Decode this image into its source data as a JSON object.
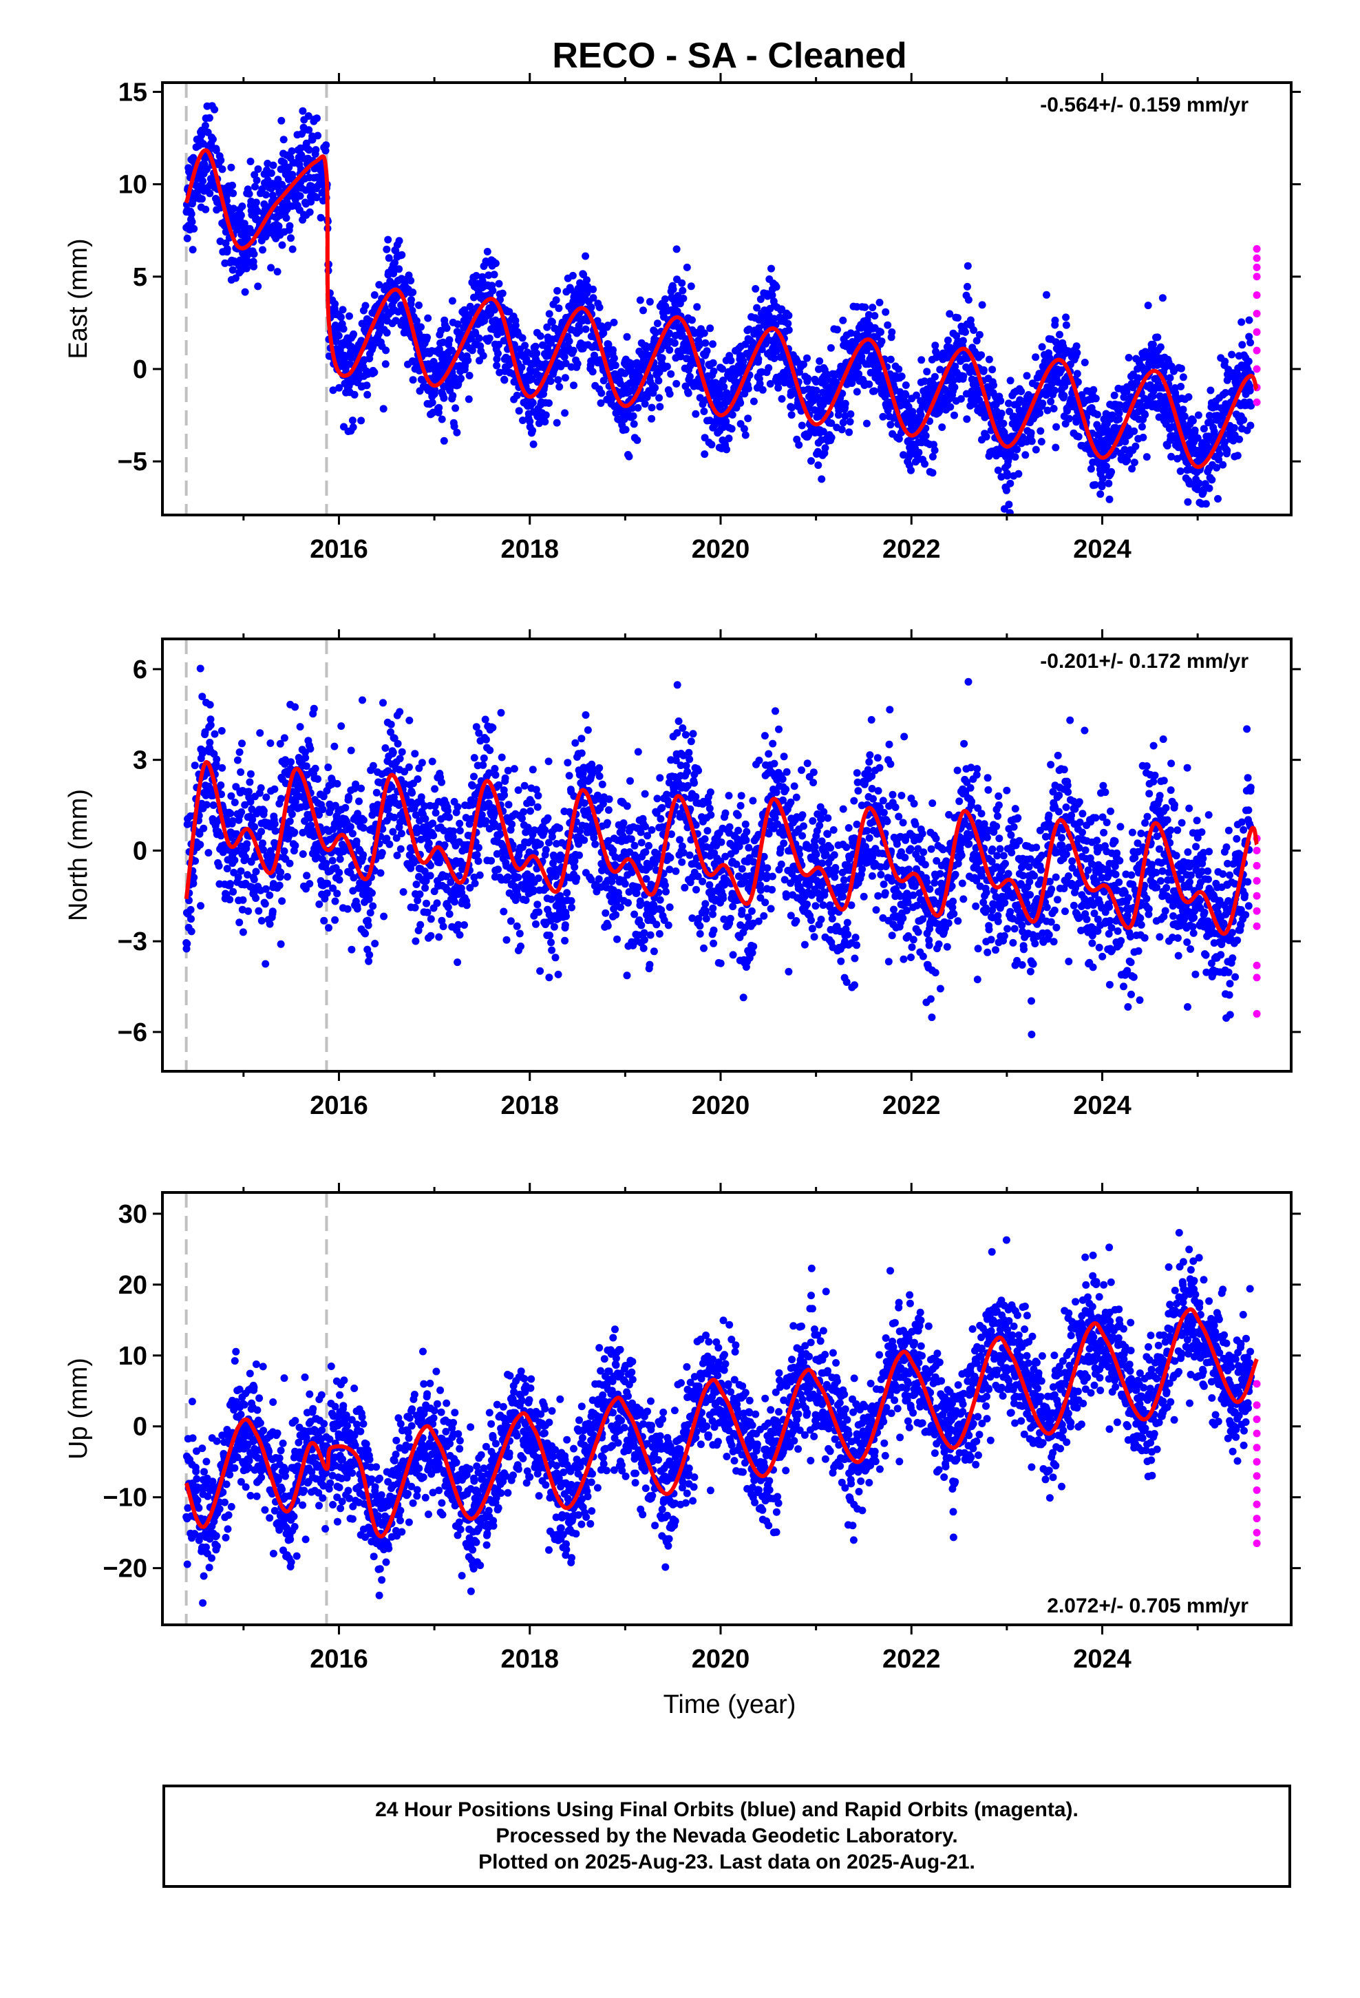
{
  "title": "RECO  - SA - Cleaned",
  "colors": {
    "final": "#0000ff",
    "rapid": "#ff00ff",
    "model": "#ff0000",
    "break": "#c0c0c0"
  },
  "x_axis": {
    "label": "Time (year)",
    "ticks": [
      "2016",
      "2018",
      "2020",
      "2022",
      "2024"
    ]
  },
  "caption": {
    "line1": "24 Hour Positions Using Final Orbits (blue) and Rapid Orbits (magenta).",
    "line2": "Processed by the Nevada Geodetic Laboratory.",
    "line3": "Plotted on 2025-Aug-23. Last data on 2025-Aug-21."
  },
  "chart_data": [
    {
      "type": "scatter",
      "ylabel": "East (mm)",
      "rate": "-0.564+/- 0.159 mm/yr",
      "rate_position": "top-right",
      "xlim": [
        2014.15,
        2025.98
      ],
      "ylim": [
        -7.9,
        15.5
      ],
      "yticks": [
        -5,
        0,
        5,
        10,
        15
      ],
      "xticks": [
        2016,
        2018,
        2020,
        2022,
        2024
      ],
      "breaks": [
        2014.4,
        2015.87
      ],
      "series": [
        {
          "kind": "final",
          "start": 2014.4,
          "end": 2025.56,
          "scatter": 1.3,
          "trend": [
            [
              2014.4,
              9.2
            ],
            [
              2015.87,
              9.0
            ],
            [
              2015.9,
              2.2
            ],
            [
              2025.56,
              -3.0
            ]
          ],
          "seasonal_amp": 2.6,
          "seasonal_phase": 0.55
        },
        {
          "kind": "rapid",
          "x": 2025.62,
          "y": [
            -1.8,
            -1.0,
            0.0,
            1.0,
            2.0,
            3.0,
            4.0,
            5.0,
            5.5,
            6.0,
            6.5
          ]
        },
        {
          "kind": "model",
          "x": [
            2014.4,
            2014.62,
            2014.95,
            2015.35,
            2015.75,
            2015.87,
            2015.9,
            2016.1,
            2016.6,
            2017.0,
            2017.6,
            2018.0,
            2018.55,
            2019.0,
            2019.55,
            2020.0,
            2020.55,
            2021.0,
            2021.55,
            2022.0,
            2022.55,
            2023.0,
            2023.55,
            2024.0,
            2024.55,
            2025.0,
            2025.5,
            2025.62
          ],
          "y": [
            9.0,
            11.8,
            6.6,
            9.0,
            11.2,
            10.5,
            2.2,
            -0.3,
            4.3,
            -0.9,
            3.8,
            -1.5,
            3.3,
            -2.0,
            2.8,
            -2.5,
            2.2,
            -3.0,
            1.6,
            -3.6,
            1.1,
            -4.2,
            0.5,
            -4.8,
            -0.1,
            -5.3,
            -0.6,
            -1.1
          ]
        }
      ]
    },
    {
      "type": "scatter",
      "ylabel": "North (mm)",
      "rate": "-0.201+/- 0.172 mm/yr",
      "rate_position": "top-right",
      "xlim": [
        2014.15,
        2025.98
      ],
      "ylim": [
        -7.3,
        7.0
      ],
      "yticks": [
        -6,
        -3,
        0,
        3,
        6
      ],
      "xticks": [
        2016,
        2018,
        2020,
        2022,
        2024
      ],
      "breaks": [
        2014.4,
        2015.87
      ],
      "series": [
        {
          "kind": "final",
          "start": 2014.4,
          "end": 2025.56,
          "scatter": 1.3,
          "trend": [
            [
              2014.4,
              0.8
            ],
            [
              2015.9,
              0.8
            ],
            [
              2018.0,
              -0.2
            ],
            [
              2019.5,
              0.6
            ],
            [
              2025.56,
              -1.4
            ]
          ],
          "seasonal_amp": 1.4,
          "seasonal_phase": 0.6
        },
        {
          "kind": "rapid",
          "x": 2025.62,
          "y": [
            -5.4,
            -4.2,
            -3.8,
            -2.5,
            -2.0,
            -1.5,
            -1.0,
            -0.5,
            0.0,
            0.4
          ]
        },
        {
          "kind": "model",
          "x": [
            2014.4,
            2014.6,
            2014.85,
            2015.05,
            2015.3,
            2015.55,
            2015.85,
            2016.05,
            2016.3,
            2016.55,
            2016.85,
            2017.05,
            2017.3,
            2017.55,
            2017.85,
            2018.05,
            2018.3,
            2018.55,
            2018.85,
            2019.05,
            2019.3,
            2019.55,
            2019.85,
            2020.05,
            2020.3,
            2020.55,
            2020.85,
            2021.05,
            2021.3,
            2021.55,
            2021.85,
            2022.05,
            2022.3,
            2022.55,
            2022.85,
            2023.05,
            2023.3,
            2023.55,
            2023.85,
            2024.05,
            2024.3,
            2024.55,
            2024.85,
            2025.05,
            2025.3,
            2025.55,
            2025.62
          ],
          "y": [
            -1.6,
            2.9,
            0.2,
            0.7,
            -0.7,
            2.7,
            0.1,
            0.5,
            -0.9,
            2.5,
            -0.3,
            0.1,
            -1.0,
            2.3,
            -0.5,
            -0.2,
            -1.3,
            2.0,
            -0.6,
            -0.3,
            -1.4,
            1.8,
            -0.7,
            -0.5,
            -1.7,
            1.7,
            -0.7,
            -0.6,
            -1.9,
            1.4,
            -0.9,
            -0.8,
            -2.1,
            1.3,
            -1.1,
            -1.0,
            -2.3,
            1.0,
            -1.2,
            -1.2,
            -2.5,
            0.9,
            -1.6,
            -1.4,
            -2.7,
            0.6,
            0.2
          ]
        }
      ]
    },
    {
      "type": "scatter",
      "ylabel": "Up (mm)",
      "rate": "2.072+/- 0.705 mm/yr",
      "rate_position": "bottom-right",
      "xlim": [
        2014.15,
        2025.98
      ],
      "ylim": [
        -28,
        33
      ],
      "yticks": [
        -20,
        -10,
        0,
        10,
        20,
        30
      ],
      "xticks": [
        2016,
        2018,
        2020,
        2022,
        2024
      ],
      "breaks": [
        2014.4,
        2015.87
      ],
      "series": [
        {
          "kind": "final",
          "start": 2014.4,
          "end": 2025.56,
          "scatter": 4.2,
          "trend": [
            [
              2014.4,
              -6.0
            ],
            [
              2019.4,
              -3.0
            ],
            [
              2025.56,
              9.0
            ]
          ],
          "seasonal_amp": 7.5,
          "seasonal_phase": 0.95
        },
        {
          "kind": "rapid",
          "x": 2025.62,
          "y": [
            -16.5,
            -15.0,
            -13.0,
            -11.0,
            -9.0,
            -7.0,
            -5.0,
            -3.0,
            -1.0,
            1.0,
            3.0,
            6.0
          ]
        },
        {
          "kind": "model",
          "x": [
            2014.4,
            2014.6,
            2014.95,
            2015.15,
            2015.45,
            2015.7,
            2015.87,
            2015.92,
            2016.2,
            2016.45,
            2016.85,
            2017.05,
            2017.4,
            2017.85,
            2018.05,
            2018.4,
            2018.85,
            2019.05,
            2019.45,
            2019.85,
            2020.05,
            2020.45,
            2020.85,
            2021.05,
            2021.45,
            2021.85,
            2022.05,
            2022.45,
            2022.85,
            2023.05,
            2023.45,
            2023.85,
            2024.05,
            2024.45,
            2024.85,
            2025.05,
            2025.4,
            2025.62
          ],
          "y": [
            -8.0,
            -14.0,
            0.0,
            -1.5,
            -12.0,
            -2.5,
            -6.0,
            -3.0,
            -4.5,
            -15.5,
            -1.0,
            -2.5,
            -13.0,
            0.8,
            -0.5,
            -11.5,
            3.0,
            1.5,
            -9.5,
            5.5,
            4.0,
            -7.0,
            7.0,
            5.5,
            -5.0,
            9.5,
            8.0,
            -3.0,
            11.5,
            10.0,
            -1.0,
            13.5,
            12.0,
            1.0,
            15.5,
            14.0,
            3.5,
            9.5
          ]
        }
      ]
    }
  ]
}
